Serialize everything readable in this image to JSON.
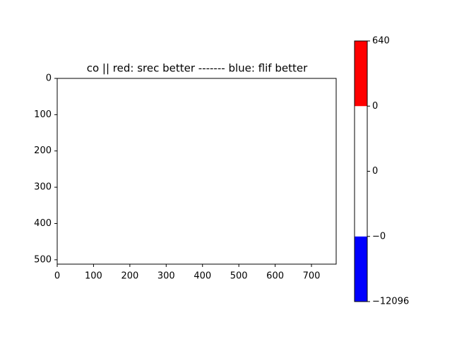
{
  "chart_data": {
    "type": "image",
    "title": "co || red: srec better ------- blue: flif better",
    "xlim": [
      0,
      768
    ],
    "ylim": [
      512,
      0
    ],
    "xticks": [
      0,
      100,
      200,
      300,
      400,
      500,
      600,
      700
    ],
    "yticks": [
      0,
      100,
      200,
      300,
      400,
      500
    ],
    "colorbar": {
      "ticks": [
        {
          "value": -12096,
          "label": "−12096"
        },
        {
          "value": 0,
          "label": "−0"
        },
        0,
        0,
        640
      ],
      "colors": [
        "#0000ff",
        "#ffffff",
        "#ffffff",
        "#ff0000"
      ],
      "spacing": "uniform"
    }
  }
}
